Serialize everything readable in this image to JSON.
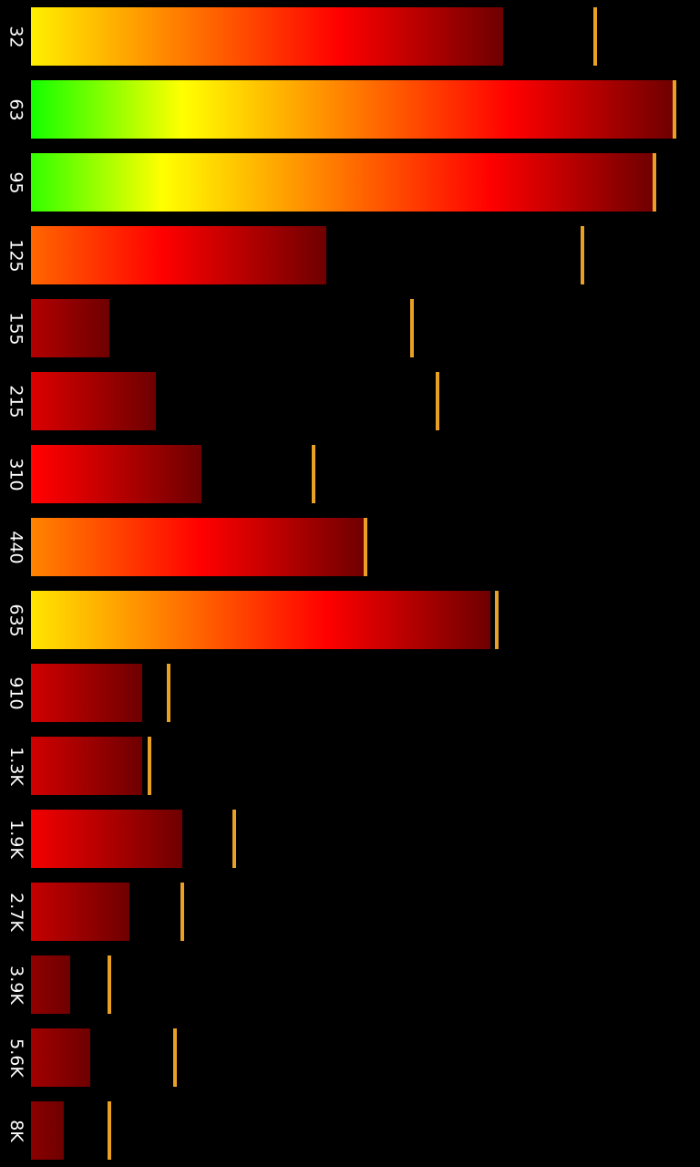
{
  "chart_data": {
    "type": "bar",
    "orientation": "horizontal",
    "categories": [
      "32",
      "63",
      "95",
      "125",
      "155",
      "215",
      "310",
      "440",
      "635",
      "910",
      "1.3K",
      "1.9K",
      "2.7K",
      "3.9K",
      "5.6K",
      "8K"
    ],
    "series": [
      {
        "values": [
          0.72,
          0.98,
          0.95,
          0.45,
          0.12,
          0.19,
          0.26,
          0.51,
          0.7,
          0.17,
          0.17,
          0.23,
          0.15,
          0.06,
          0.09,
          0.05
        ]
      },
      {
        "values": [
          0.86,
          0.98,
          0.95,
          0.84,
          0.58,
          0.62,
          0.43,
          0.51,
          0.71,
          0.21,
          0.18,
          0.31,
          0.23,
          0.12,
          0.22,
          0.12
        ]
      }
    ],
    "xlim": [
      0,
      1
    ],
    "grid": false,
    "gradient_stops": [
      "#00ff00",
      "#ffff00",
      "#ff8000",
      "#ff0000",
      "#6e0000"
    ],
    "peak_color": "#e8a125"
  }
}
